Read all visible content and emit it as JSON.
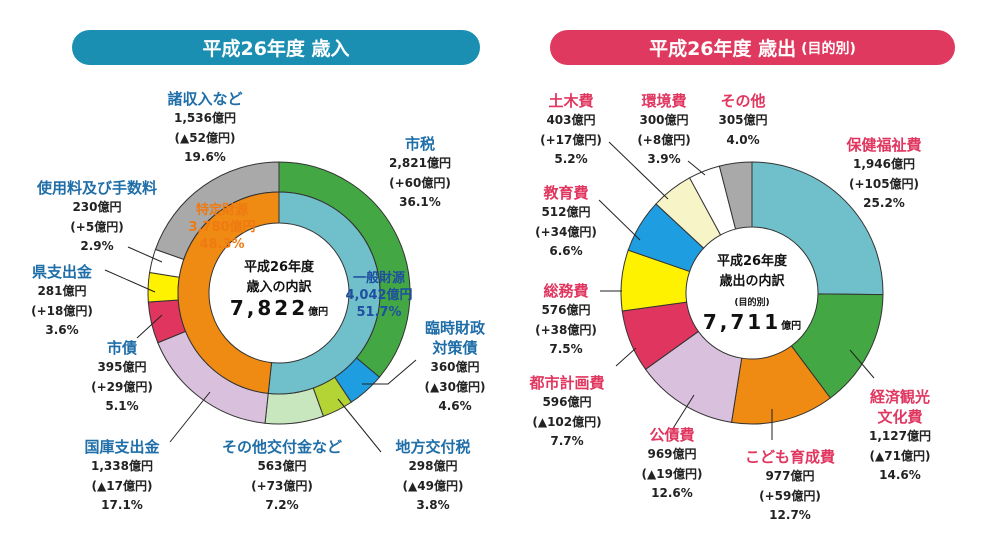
{
  "chart_data": [
    {
      "type": "donut",
      "title": "平成26年度 歳入",
      "center": {
        "line1": "平成26年度",
        "line2": "歳入の内訳",
        "total": "7,822",
        "unit": "億円"
      },
      "inner": [
        {
          "name": "一般財源",
          "amount": "4,042億円",
          "pct": "51.7%",
          "value": 51.7,
          "color": "#70c0cb",
          "text_color": "#1f4fa0"
        },
        {
          "name": "特定財源",
          "amount": "3,780億円",
          "pct": "48.3%",
          "value": 48.3,
          "color": "#ef8a12",
          "text_color": "#ef7a12"
        }
      ],
      "slices": [
        {
          "name": "市税",
          "amount": "2,821億円",
          "change": "(+60億円)",
          "pct": "36.1%",
          "value": 36.1,
          "color": "#43a843"
        },
        {
          "name": "臨時財政対策債",
          "amount": "360億円",
          "change": "(▲30億円)",
          "pct": "4.6%",
          "value": 4.6,
          "color": "#1e9ee0"
        },
        {
          "name": "地方交付税",
          "amount": "298億円",
          "change": "(▲49億円)",
          "pct": "3.8%",
          "value": 3.8,
          "color": "#b4d335"
        },
        {
          "name": "その他交付金など",
          "amount": "563億円",
          "change": "(+73億円)",
          "pct": "7.2%",
          "value": 7.2,
          "color": "#c8e7bf"
        },
        {
          "name": "国庫支出金",
          "amount": "1,338億円",
          "change": "(▲17億円)",
          "pct": "17.1%",
          "value": 17.1,
          "color": "#d9c0dd"
        },
        {
          "name": "市債",
          "amount": "395億円",
          "change": "(+29億円)",
          "pct": "5.1%",
          "value": 5.1,
          "color": "#e0355f"
        },
        {
          "name": "県支出金",
          "amount": "281億円",
          "change": "(+18億円)",
          "pct": "3.6%",
          "value": 3.6,
          "color": "#fff200"
        },
        {
          "name": "使用料及び手数料",
          "amount": "230億円",
          "change": "(+5億円)",
          "pct": "2.9%",
          "value": 2.9,
          "color": "#ffffff"
        },
        {
          "name": "諸収入など",
          "amount": "1,536億円",
          "change": "(▲52億円)",
          "pct": "19.6%",
          "value": 19.6,
          "color": "#a9a9a9"
        }
      ]
    },
    {
      "type": "donut",
      "title": "平成26年度 歳出",
      "title_note": "(目的別)",
      "center": {
        "line1": "平成26年度",
        "line2": "歳出の内訳",
        "line3": "(目的別)",
        "total": "7,711",
        "unit": "億円"
      },
      "slices": [
        {
          "name": "保健福祉費",
          "amount": "1,946億円",
          "change": "(+105億円)",
          "pct": "25.2%",
          "value": 25.2,
          "color": "#70c0cb"
        },
        {
          "name": "経済観光文化費",
          "amount": "1,127億円",
          "change": "(▲71億円)",
          "pct": "14.6%",
          "value": 14.6,
          "color": "#43a843"
        },
        {
          "name": "こども育成費",
          "amount": "977億円",
          "change": "(+59億円)",
          "pct": "12.7%",
          "value": 12.7,
          "color": "#ef8a12"
        },
        {
          "name": "公債費",
          "amount": "969億円",
          "change": "(▲19億円)",
          "pct": "12.6%",
          "value": 12.6,
          "color": "#d9c0dd"
        },
        {
          "name": "都市計画費",
          "amount": "596億円",
          "change": "(▲102億円)",
          "pct": "7.7%",
          "value": 7.7,
          "color": "#e0355f"
        },
        {
          "name": "総務費",
          "amount": "576億円",
          "change": "(+38億円)",
          "pct": "7.5%",
          "value": 7.5,
          "color": "#fff200"
        },
        {
          "name": "教育費",
          "amount": "512億円",
          "change": "(+34億円)",
          "pct": "6.6%",
          "value": 6.6,
          "color": "#1e9ee0"
        },
        {
          "name": "土木費",
          "amount": "403億円",
          "change": "(+17億円)",
          "pct": "5.2%",
          "value": 5.2,
          "color": "#f7f5c8"
        },
        {
          "name": "環境費",
          "amount": "300億円",
          "change": "(+8億円)",
          "pct": "3.9%",
          "value": 3.9,
          "color": "#ffffff"
        },
        {
          "name": "その他",
          "amount": "305億円",
          "pct": "4.0%",
          "value": 4.0,
          "color": "#a9a9a9"
        }
      ]
    }
  ],
  "colors": {
    "revenue_header": "#1a8fb2",
    "expense_header": "#e0395f"
  }
}
